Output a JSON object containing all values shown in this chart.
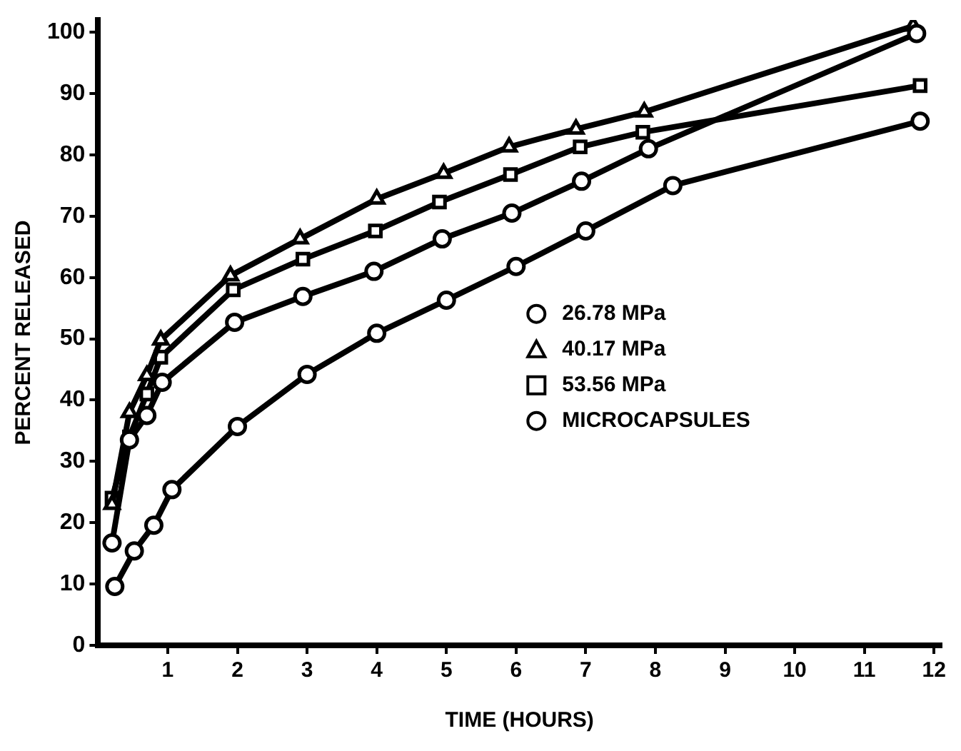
{
  "chart_data": {
    "type": "line",
    "xlabel": "TIME (HOURS)",
    "ylabel": "PERCENT RELEASED",
    "xlim": [
      0,
      12.1
    ],
    "xticks": [
      1,
      2,
      3,
      4,
      5,
      6,
      7,
      8,
      9,
      10,
      11,
      12
    ],
    "ylim": [
      0,
      102
    ],
    "yticks": [
      0,
      10,
      20,
      30,
      40,
      50,
      60,
      70,
      80,
      90,
      100
    ],
    "grid": false,
    "legend": "right",
    "line_style": "solid",
    "series": [
      {
        "name": "26.78 MPa",
        "color": "#000000",
        "marker": "circle",
        "x": [
          0.2,
          0.45,
          0.7,
          0.92,
          1.96,
          2.94,
          3.96,
          4.94,
          5.94,
          6.94,
          7.9,
          11.75
        ],
        "values": [
          16.7,
          33.5,
          37.5,
          42.9,
          52.7,
          56.9,
          61,
          66.3,
          70.5,
          75.7,
          81,
          99.8
        ]
      },
      {
        "name": "40.17 MPa",
        "color": "#000000",
        "marker": "triangle",
        "x": [
          0.2,
          0.45,
          0.7,
          0.9,
          1.9,
          2.9,
          4.0,
          4.96,
          5.9,
          6.86,
          7.84,
          11.7
        ],
        "values": [
          23,
          38,
          44,
          49.8,
          60.3,
          66.3,
          72.8,
          77,
          81.3,
          84.2,
          87,
          101
        ]
      },
      {
        "name": "53.56 MPa",
        "color": "#000000",
        "marker": "square",
        "x": [
          0.2,
          0.45,
          0.7,
          0.9,
          1.94,
          2.94,
          3.98,
          4.9,
          5.92,
          6.92,
          7.82,
          11.8
        ],
        "values": [
          24,
          34,
          41,
          47,
          58,
          63,
          67.6,
          72.3,
          76.8,
          81.3,
          83.7,
          91.3
        ]
      },
      {
        "name": "MICROCAPSULES",
        "color": "#000000",
        "marker": "circle",
        "x": [
          0.24,
          0.52,
          0.8,
          1.06,
          2.0,
          3.0,
          4.0,
          5.0,
          6.0,
          7.0,
          8.25,
          11.8
        ],
        "values": [
          9.6,
          15.4,
          19.6,
          25.4,
          35.7,
          44.2,
          50.9,
          56.3,
          61.8,
          67.6,
          75,
          85.5
        ]
      }
    ]
  }
}
